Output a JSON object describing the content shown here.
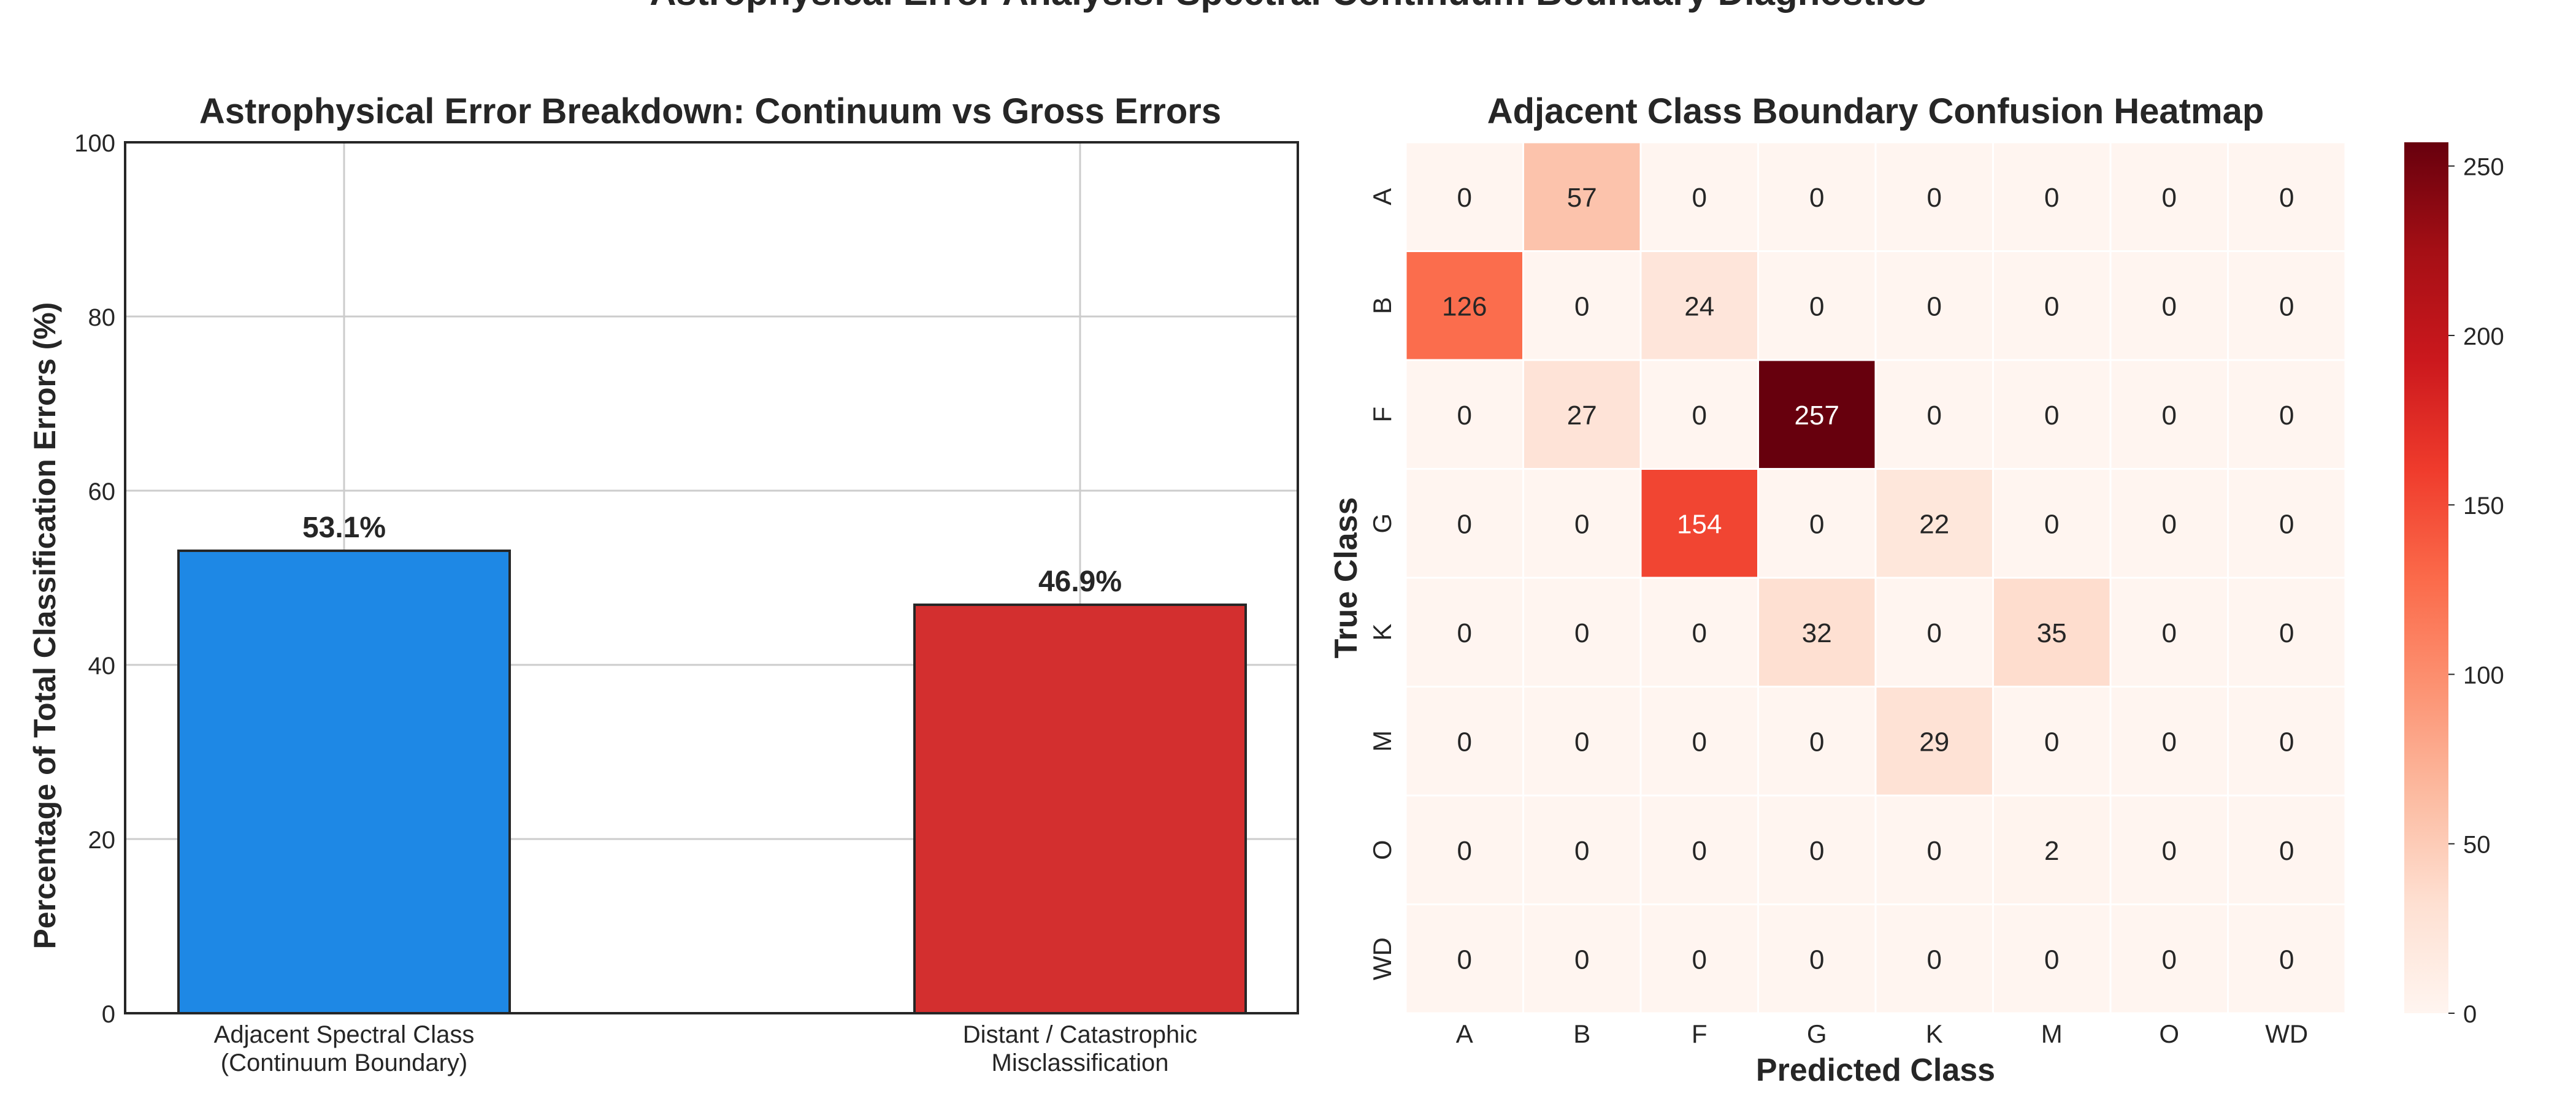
{
  "figure": {
    "suptitle": "Astrophysical Error Analysis: Spectral Continuum Boundary Diagnostics"
  },
  "chart_data": [
    {
      "type": "bar",
      "title": "Astrophysical Error Breakdown: Continuum vs Gross Errors",
      "xlabel": "",
      "ylabel": "Percentage of Total Classification Errors (%)",
      "ylim": [
        0,
        100
      ],
      "yticks": [
        0,
        20,
        40,
        60,
        80,
        100
      ],
      "grid": true,
      "categories": [
        [
          "Adjacent Spectral Class",
          "(Continuum Boundary)"
        ],
        [
          "Distant / Catastrophic",
          "Misclassification"
        ]
      ],
      "values": [
        53.1,
        46.9
      ],
      "value_labels": [
        "53.1%",
        "46.9%"
      ],
      "colors": [
        "#1E88E5",
        "#D32F2F"
      ]
    },
    {
      "type": "heatmap",
      "title": "Adjacent Class Boundary Confusion Heatmap",
      "xlabel": "Predicted Class",
      "ylabel": "True Class",
      "x_labels": [
        "A",
        "B",
        "F",
        "G",
        "K",
        "M",
        "O",
        "WD"
      ],
      "y_labels": [
        "A",
        "B",
        "F",
        "G",
        "K",
        "M",
        "O",
        "WD"
      ],
      "values": [
        [
          0,
          57,
          0,
          0,
          0,
          0,
          0,
          0
        ],
        [
          126,
          0,
          24,
          0,
          0,
          0,
          0,
          0
        ],
        [
          0,
          27,
          0,
          257,
          0,
          0,
          0,
          0
        ],
        [
          0,
          0,
          154,
          0,
          22,
          0,
          0,
          0
        ],
        [
          0,
          0,
          0,
          32,
          0,
          35,
          0,
          0
        ],
        [
          0,
          0,
          0,
          0,
          29,
          0,
          0,
          0
        ],
        [
          0,
          0,
          0,
          0,
          0,
          2,
          0,
          0
        ],
        [
          0,
          0,
          0,
          0,
          0,
          0,
          0,
          0
        ]
      ],
      "colormap": "Reds",
      "vmin": 0,
      "vmax": 257,
      "colorbar_ticks": [
        0,
        50,
        100,
        150,
        200,
        250
      ]
    }
  ]
}
